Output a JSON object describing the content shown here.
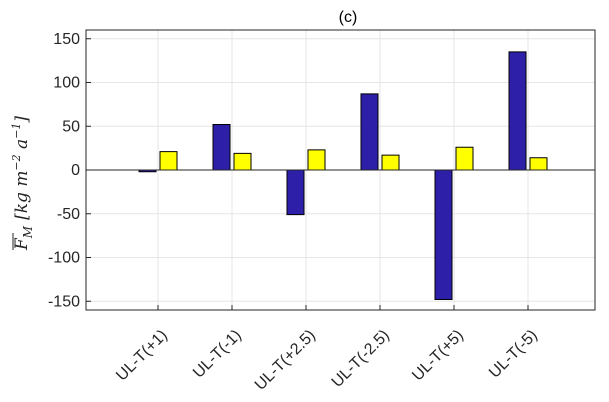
{
  "chart_data": {
    "type": "bar",
    "title": "(c)",
    "ylabel": "F_M [kg m^-2 a^-1]",
    "ylabel_parts": {
      "symbol": "F",
      "subscript": "M",
      "unit_open": "[kg m",
      "exp1": "−2",
      "unit_mid": " a",
      "exp2": "−1",
      "unit_close": "]"
    },
    "categories": [
      "UL-T(+1)",
      "UL-T(-1)",
      "UL-T(+2.5)",
      "UL-T(-2.5)",
      "UL-T(+5)",
      "UL-T(-5)"
    ],
    "series": [
      {
        "color": "#2e1fa8",
        "values": [
          -2,
          52,
          -51,
          87,
          -148,
          135
        ]
      },
      {
        "color": "#ffff00",
        "values": [
          21,
          19,
          23,
          17,
          26,
          14
        ]
      }
    ],
    "ylim": [
      -160,
      160
    ],
    "yticks": [
      -150,
      -100,
      -50,
      0,
      50,
      100,
      150
    ],
    "grid": true
  }
}
